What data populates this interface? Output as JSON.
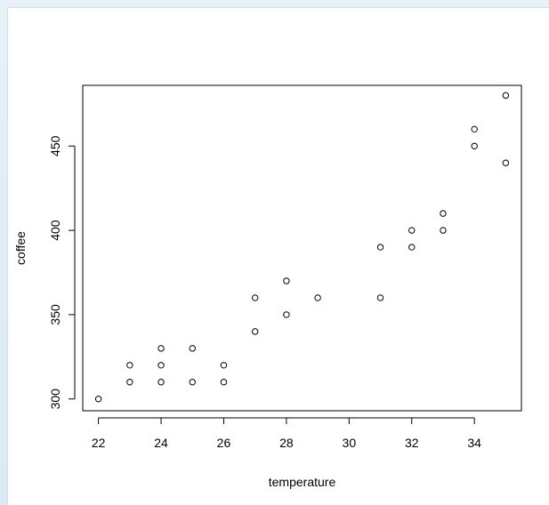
{
  "chart_data": {
    "type": "scatter",
    "title": "",
    "xlabel": "temperature",
    "ylabel": "coffee",
    "xlim": [
      21.5,
      35.5
    ],
    "ylim": [
      293,
      486
    ],
    "xticks": [
      22,
      24,
      26,
      28,
      30,
      32,
      34
    ],
    "yticks": [
      300,
      350,
      400,
      450
    ],
    "grid": false,
    "marker": "open-circle",
    "colors": {
      "points": "#000000",
      "axes": "#000000",
      "background": "#ffffff"
    },
    "points": [
      {
        "x": 22,
        "y": 300
      },
      {
        "x": 23,
        "y": 310
      },
      {
        "x": 23,
        "y": 320
      },
      {
        "x": 24,
        "y": 310
      },
      {
        "x": 24,
        "y": 320
      },
      {
        "x": 24,
        "y": 330
      },
      {
        "x": 25,
        "y": 310
      },
      {
        "x": 25,
        "y": 330
      },
      {
        "x": 26,
        "y": 310
      },
      {
        "x": 26,
        "y": 320
      },
      {
        "x": 27,
        "y": 340
      },
      {
        "x": 27,
        "y": 360
      },
      {
        "x": 28,
        "y": 350
      },
      {
        "x": 28,
        "y": 370
      },
      {
        "x": 29,
        "y": 360
      },
      {
        "x": 31,
        "y": 360
      },
      {
        "x": 31,
        "y": 390
      },
      {
        "x": 32,
        "y": 390
      },
      {
        "x": 32,
        "y": 400
      },
      {
        "x": 33,
        "y": 400
      },
      {
        "x": 33,
        "y": 410
      },
      {
        "x": 34,
        "y": 450
      },
      {
        "x": 34,
        "y": 460
      },
      {
        "x": 35,
        "y": 440
      },
      {
        "x": 35,
        "y": 480
      }
    ]
  }
}
